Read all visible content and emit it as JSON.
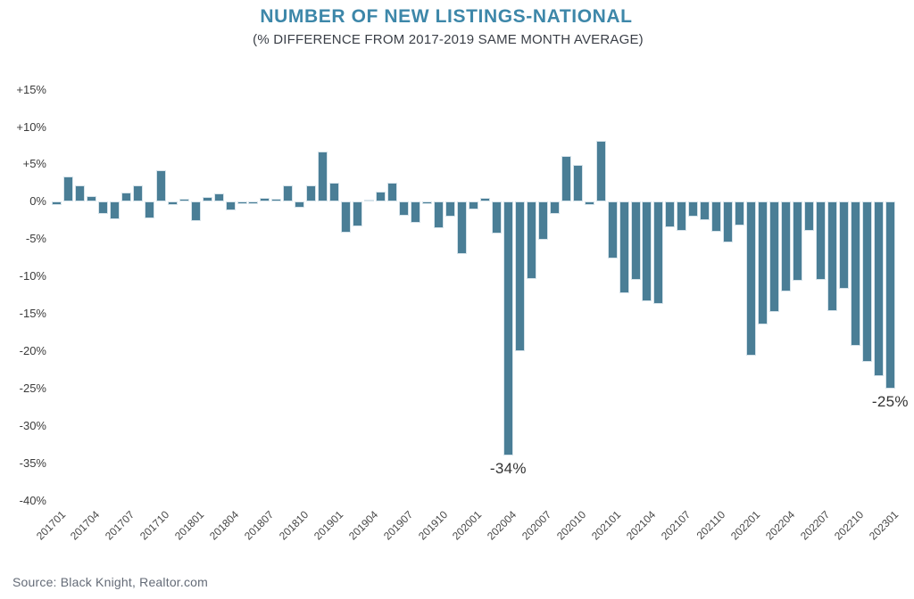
{
  "header": {
    "title": "NUMBER OF NEW LISTINGS-NATIONAL",
    "subtitle": "(% DIFFERENCE FROM 2017-2019 SAME MONTH AVERAGE)"
  },
  "footer": {
    "source": "Source: Black Knight, Realtor.com"
  },
  "colors": {
    "bar": "#4a7e96",
    "bar_border": "#d6e3ea",
    "title": "#3d87a9",
    "subtitle": "#3a3f47",
    "axis_text": "#3b3b3b",
    "annotation": "#333333",
    "source": "#646b77"
  },
  "chart_data": {
    "type": "bar",
    "title": "NUMBER OF NEW LISTINGS-NATIONAL",
    "subtitle": "(% DIFFERENCE FROM 2017-2019 SAME MONTH AVERAGE)",
    "ylim": [
      -40,
      15
    ],
    "grid": false,
    "legend": false,
    "y_tick_labels": [
      "+15%",
      "+10%",
      "+5%",
      "0%",
      "-5%",
      "-10%",
      "-15%",
      "-20%",
      "-25%",
      "-30%",
      "-35%",
      "-40%"
    ],
    "y_tick_values": [
      15,
      10,
      5,
      0,
      -5,
      -10,
      -15,
      -20,
      -25,
      -30,
      -35,
      -40
    ],
    "x_tick_labels": [
      "201701",
      "201704",
      "201707",
      "201710",
      "201801",
      "201804",
      "201807",
      "201810",
      "201901",
      "201904",
      "201907",
      "201910",
      "202001",
      "202004",
      "202007",
      "202010",
      "202101",
      "202104",
      "202107",
      "202110",
      "202201",
      "202204",
      "202207",
      "202210",
      "202301"
    ],
    "categories": [
      "201701",
      "201702",
      "201703",
      "201704",
      "201705",
      "201706",
      "201707",
      "201708",
      "201709",
      "201710",
      "201711",
      "201712",
      "201801",
      "201802",
      "201803",
      "201804",
      "201805",
      "201806",
      "201807",
      "201808",
      "201809",
      "201810",
      "201811",
      "201812",
      "201901",
      "201902",
      "201903",
      "201904",
      "201905",
      "201906",
      "201907",
      "201908",
      "201909",
      "201910",
      "201911",
      "201912",
      "202001",
      "202002",
      "202003",
      "202004",
      "202005",
      "202006",
      "202007",
      "202008",
      "202009",
      "202010",
      "202011",
      "202012",
      "202101",
      "202102",
      "202103",
      "202104",
      "202105",
      "202106",
      "202107",
      "202108",
      "202109",
      "202110",
      "202111",
      "202112",
      "202201",
      "202202",
      "202203",
      "202204",
      "202205",
      "202206",
      "202207",
      "202208",
      "202209",
      "202210",
      "202211",
      "202212",
      "202301"
    ],
    "values": [
      -0.5,
      3.4,
      2.2,
      0.8,
      -1.6,
      -2.3,
      1.2,
      2.2,
      -2.2,
      4.2,
      -0.5,
      0.4,
      -2.6,
      0.6,
      1.1,
      -1.2,
      -0.3,
      -0.3,
      0.5,
      0.4,
      2.2,
      -0.8,
      2.2,
      6.7,
      2.6,
      -4.2,
      -3.3,
      0.3,
      1.4,
      2.5,
      -1.9,
      -2.8,
      -0.3,
      -3.6,
      -2.0,
      -7.0,
      -1.0,
      0.5,
      -4.3,
      -34.0,
      -20.0,
      -10.4,
      -5.1,
      -1.6,
      6.1,
      4.9,
      -0.4,
      8.1,
      -7.6,
      -12.2,
      -10.5,
      -13.3,
      -13.7,
      -3.4,
      -3.9,
      -2.0,
      -2.5,
      -4.0,
      -5.5,
      -3.2,
      -20.6,
      -16.4,
      -14.8,
      -12.0,
      -10.6,
      -3.9,
      -10.5,
      -14.6,
      -11.7,
      -19.3,
      -21.4,
      -23.4,
      -25.0
    ],
    "annotations": [
      {
        "text": "-34%",
        "category": "202004"
      },
      {
        "text": "-25%",
        "category": "202301"
      }
    ]
  }
}
